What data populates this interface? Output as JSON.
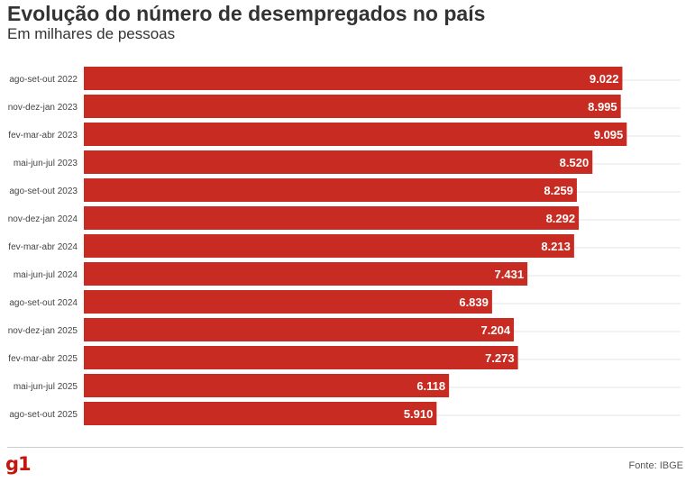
{
  "header": {
    "title": "Evolução do número de desempregados no país",
    "subtitle": "Em milhares de pessoas"
  },
  "footer": {
    "logo": "g1",
    "source": "Fonte: IBGE"
  },
  "colors": {
    "bar": "#c72b22",
    "bar_label": "#ffffff",
    "grid": "#e6e6e6",
    "logo": "#c4170c"
  },
  "chart_data": {
    "type": "bar",
    "orientation": "horizontal",
    "title": "Evolução do número de desempregados no país",
    "subtitle": "Em milhares de pessoas",
    "categories": [
      "ago-set-out 2022",
      "nov-dez-jan 2023",
      "fev-mar-abr 2023",
      "mai-jun-jul 2023",
      "ago-set-out 2023",
      "nov-dez-jan 2024",
      "fev-mar-abr 2024",
      "mai-jun-jul 2024",
      "ago-set-out 2024",
      "nov-dez-jan 2025",
      "fev-mar-abr 2025",
      "mai-jun-jul 2025",
      "ago-set-out 2025"
    ],
    "values": [
      9022,
      8995,
      9095,
      8520,
      8259,
      8292,
      8213,
      7431,
      6839,
      7204,
      7273,
      6118,
      5910
    ],
    "value_labels": [
      "9.022",
      "8.995",
      "9.095",
      "8.520",
      "8.259",
      "8.292",
      "8.213",
      "7.431",
      "6.839",
      "7.204",
      "7.273",
      "6.118",
      "5.910"
    ],
    "xlim": [
      0,
      9000
    ],
    "grid": true,
    "legend": "none"
  }
}
